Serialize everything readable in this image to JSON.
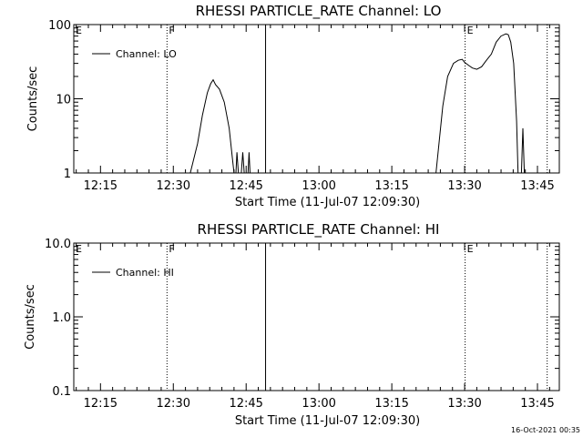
{
  "timestamp": "16-Oct-2021 00:35",
  "chart_data": [
    {
      "type": "line",
      "title": "RHESSI PARTICLE_RATE Channel: LO",
      "xlabel": "Start Time (11-Jul-07 12:09:30)",
      "ylabel": "Counts/sec",
      "y_scale": "log",
      "ylim": [
        1,
        100
      ],
      "xlim_minutes_after_start": [
        0,
        100
      ],
      "x_ticks": [
        {
          "t": 5.5,
          "label": "12:15"
        },
        {
          "t": 20.5,
          "label": "12:30"
        },
        {
          "t": 35.5,
          "label": "12:45"
        },
        {
          "t": 50.5,
          "label": "13:00"
        },
        {
          "t": 65.5,
          "label": "13:15"
        },
        {
          "t": 80.5,
          "label": "13:30"
        },
        {
          "t": 95.5,
          "label": "13:45"
        }
      ],
      "y_ticks": [
        {
          "v": 1,
          "label": "1"
        },
        {
          "v": 10,
          "label": "10"
        },
        {
          "v": 100,
          "label": "100"
        }
      ],
      "legend": {
        "entries": [
          "Channel: LO"
        ],
        "placement": "top-left"
      },
      "flags": [
        {
          "t": 0,
          "label": "E",
          "style": "none"
        },
        {
          "t": 19.2,
          "label": "F",
          "style": "dotted"
        },
        {
          "t": 39.5,
          "label": "",
          "style": "solid"
        },
        {
          "t": 80.6,
          "label": "E",
          "style": "dotted"
        },
        {
          "t": 97.5,
          "label": "",
          "style": "dotted"
        }
      ],
      "series": [
        {
          "name": "Channel: LO",
          "segments": [
            [
              [
                24.0,
                1
              ],
              [
                25.5,
                2.5
              ],
              [
                26.5,
                6
              ],
              [
                27.5,
                12
              ],
              [
                28.2,
                16
              ],
              [
                28.7,
                18
              ],
              [
                29.2,
                15.5
              ],
              [
                30.0,
                13.5
              ],
              [
                31.0,
                9
              ],
              [
                32.0,
                4
              ],
              [
                32.7,
                1.5
              ],
              [
                33.0,
                1
              ]
            ],
            [
              [
                33.4,
                1
              ],
              [
                33.6,
                1.9
              ],
              [
                33.9,
                1
              ]
            ],
            [
              [
                34.5,
                1
              ],
              [
                34.8,
                1.9
              ],
              [
                35.1,
                1
              ]
            ],
            [
              [
                35.9,
                1
              ],
              [
                36.1,
                1.9
              ],
              [
                36.3,
                1
              ]
            ],
            [
              [
                74.6,
                1
              ],
              [
                76.0,
                8
              ],
              [
                77.0,
                20
              ],
              [
                78.2,
                30
              ],
              [
                79.2,
                33
              ],
              [
                80.0,
                34
              ],
              [
                80.5,
                31
              ],
              [
                81.4,
                28
              ],
              [
                82.1,
                26
              ],
              [
                83.0,
                25
              ],
              [
                84.0,
                27
              ],
              [
                85.0,
                33
              ],
              [
                86.0,
                40
              ],
              [
                87.0,
                58
              ],
              [
                88.0,
                70
              ],
              [
                89.0,
                75
              ],
              [
                89.5,
                73
              ],
              [
                90.0,
                58
              ],
              [
                90.6,
                30
              ],
              [
                91.2,
                5
              ],
              [
                91.5,
                1
              ]
            ],
            [
              [
                92.2,
                1
              ],
              [
                92.5,
                4
              ],
              [
                92.8,
                1
              ]
            ]
          ]
        }
      ]
    },
    {
      "type": "line",
      "title": "RHESSI PARTICLE_RATE Channel: HI",
      "xlabel": "Start Time (11-Jul-07 12:09:30)",
      "ylabel": "Counts/sec",
      "y_scale": "log",
      "ylim": [
        0.1,
        10.0
      ],
      "xlim_minutes_after_start": [
        0,
        100
      ],
      "x_ticks": [
        {
          "t": 5.5,
          "label": "12:15"
        },
        {
          "t": 20.5,
          "label": "12:30"
        },
        {
          "t": 35.5,
          "label": "12:45"
        },
        {
          "t": 50.5,
          "label": "13:00"
        },
        {
          "t": 65.5,
          "label": "13:15"
        },
        {
          "t": 80.5,
          "label": "13:30"
        },
        {
          "t": 95.5,
          "label": "13:45"
        }
      ],
      "y_ticks": [
        {
          "v": 0.1,
          "label": "0.1"
        },
        {
          "v": 1.0,
          "label": "1.0"
        },
        {
          "v": 10.0,
          "label": "10.0"
        }
      ],
      "legend": {
        "entries": [
          "Channel: HI"
        ],
        "placement": "top-left"
      },
      "flags": [
        {
          "t": 0,
          "label": "E",
          "style": "none"
        },
        {
          "t": 19.2,
          "label": "F",
          "style": "dotted"
        },
        {
          "t": 39.5,
          "label": "",
          "style": "solid"
        },
        {
          "t": 80.6,
          "label": "E",
          "style": "dotted"
        },
        {
          "t": 97.5,
          "label": "",
          "style": "dotted"
        }
      ],
      "series": [
        {
          "name": "Channel: HI",
          "segments": []
        }
      ]
    }
  ]
}
